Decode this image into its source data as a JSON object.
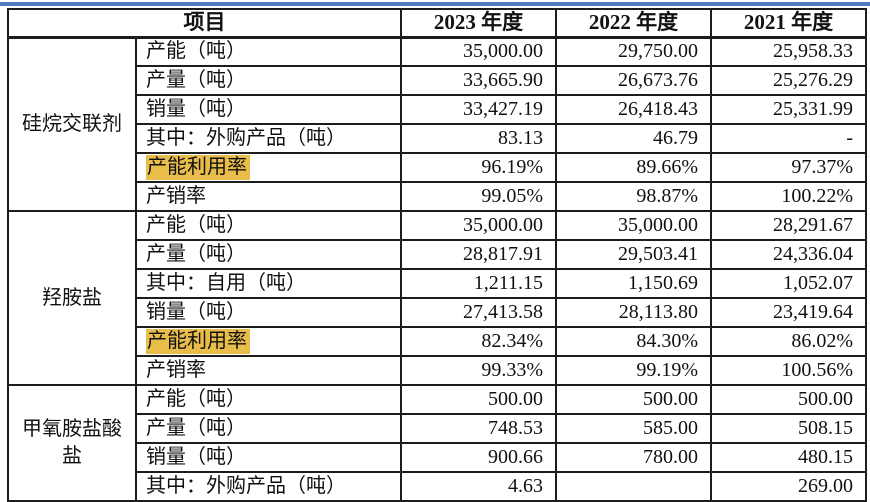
{
  "theme": {
    "highlight_color": "#e9bd4a",
    "top_rule_color": "#4f7dbf",
    "border_color": "#1d1d1d"
  },
  "table": {
    "header": {
      "item": "项目",
      "years": [
        "2023 年度",
        "2022 年度",
        "2021 年度"
      ]
    },
    "sections": [
      {
        "group": "硅烷交联剂",
        "rows": [
          {
            "label": "产能（吨）",
            "highlight": false,
            "values": [
              "35,000.00",
              "29,750.00",
              "25,958.33"
            ]
          },
          {
            "label": "产量（吨）",
            "highlight": false,
            "values": [
              "33,665.90",
              "26,673.76",
              "25,276.29"
            ]
          },
          {
            "label": "销量（吨）",
            "highlight": false,
            "values": [
              "33,427.19",
              "26,418.43",
              "25,331.99"
            ]
          },
          {
            "label": "其中：外购产品（吨）",
            "highlight": false,
            "values": [
              "83.13",
              "46.79",
              "-"
            ]
          },
          {
            "label": "产能利用率",
            "highlight": true,
            "values": [
              "96.19%",
              "89.66%",
              "97.37%"
            ]
          },
          {
            "label": "产销率",
            "highlight": false,
            "values": [
              "99.05%",
              "98.87%",
              "100.22%"
            ]
          }
        ]
      },
      {
        "group": "羟胺盐",
        "rows": [
          {
            "label": "产能（吨）",
            "highlight": false,
            "values": [
              "35,000.00",
              "35,000.00",
              "28,291.67"
            ]
          },
          {
            "label": "产量（吨）",
            "highlight": false,
            "values": [
              "28,817.91",
              "29,503.41",
              "24,336.04"
            ]
          },
          {
            "label": "其中：自用（吨）",
            "highlight": false,
            "values": [
              "1,211.15",
              "1,150.69",
              "1,052.07"
            ]
          },
          {
            "label": "销量（吨）",
            "highlight": false,
            "values": [
              "27,413.58",
              "28,113.80",
              "23,419.64"
            ]
          },
          {
            "label": "产能利用率",
            "highlight": true,
            "values": [
              "82.34%",
              "84.30%",
              "86.02%"
            ]
          },
          {
            "label": "产销率",
            "highlight": false,
            "values": [
              "99.33%",
              "99.19%",
              "100.56%"
            ]
          }
        ]
      },
      {
        "group": "甲氧胺盐酸盐",
        "rows": [
          {
            "label": "产能（吨）",
            "highlight": false,
            "values": [
              "500.00",
              "500.00",
              "500.00"
            ]
          },
          {
            "label": "产量（吨）",
            "highlight": false,
            "values": [
              "748.53",
              "585.00",
              "508.15"
            ]
          },
          {
            "label": "销量（吨）",
            "highlight": false,
            "values": [
              "900.66",
              "780.00",
              "480.15"
            ]
          },
          {
            "label": "其中：外购产品（吨）",
            "highlight": false,
            "values": [
              "4.63",
              "",
              "269.00"
            ]
          }
        ]
      }
    ]
  }
}
